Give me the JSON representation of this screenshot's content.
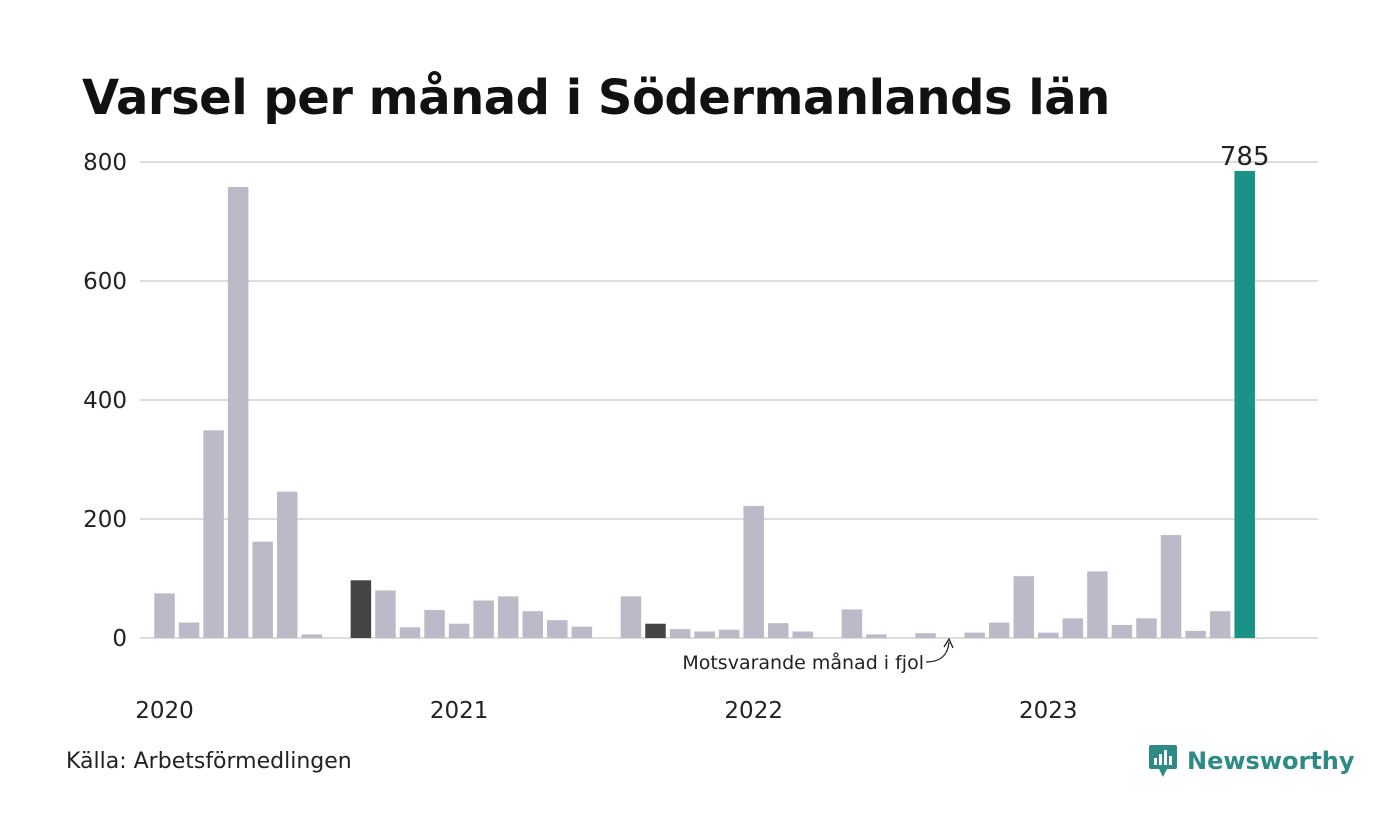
{
  "chart_data": {
    "type": "bar",
    "title": "Varsel per månad i Södermanlands län",
    "xlabel": "",
    "ylabel": "",
    "ylim": [
      0,
      800
    ],
    "yticks": [
      0,
      200,
      400,
      600,
      800
    ],
    "grid": true,
    "year_labels": [
      {
        "label": "2020",
        "index": 0
      },
      {
        "label": "2021",
        "index": 12
      },
      {
        "label": "2022",
        "index": 24
      },
      {
        "label": "2023",
        "index": 36
      }
    ],
    "values": [
      75,
      26,
      349,
      758,
      162,
      246,
      6,
      0,
      97,
      80,
      18,
      47,
      24,
      63,
      70,
      45,
      30,
      19,
      0,
      70,
      24,
      15,
      11,
      14,
      222,
      25,
      11,
      0,
      48,
      6,
      0,
      8,
      0,
      9,
      26,
      104,
      9,
      33,
      112,
      22,
      33,
      173,
      12,
      45,
      785
    ],
    "highlight_indices": [
      8,
      20
    ],
    "current_index": 44,
    "current_value_label": "785",
    "colors": {
      "default": "#bcbac8",
      "highlight": "#444444",
      "current": "#1a9285",
      "grid": "#dddddd"
    },
    "annotation": {
      "text": "Motsvarande månad i fjol"
    }
  },
  "source": "Källa: Arbetsförmedlingen",
  "brand": {
    "name": "Newsworthy",
    "icon": "chart-bubble-icon",
    "color": "#2d8a84"
  }
}
